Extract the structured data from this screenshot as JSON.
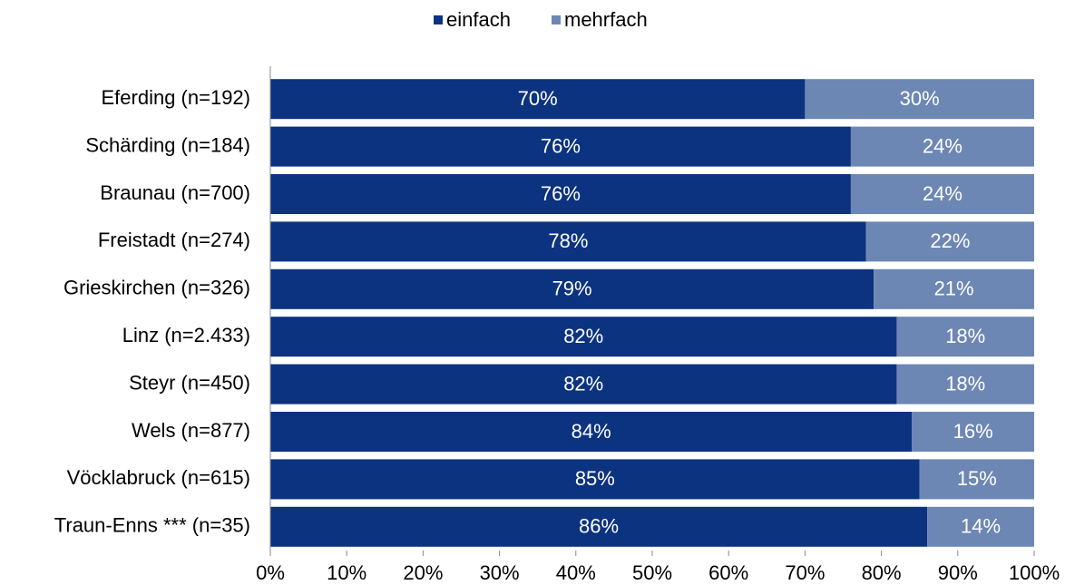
{
  "chart_data": {
    "type": "stacked_barh",
    "categories": [
      "Eferding (n=192)",
      "Schärding (n=184)",
      "Braunau (n=700)",
      "Freistadt (n=274)",
      "Grieskirchen (n=326)",
      "Linz (n=2.433)",
      "Steyr (n=450)",
      "Wels (n=877)",
      "Vöcklabruck (n=615)",
      "Traun-Enns *** (n=35)"
    ],
    "series": [
      {
        "name": "einfach",
        "color": "#0c3380",
        "values": [
          70,
          76,
          76,
          78,
          79,
          82,
          82,
          84,
          85,
          86
        ],
        "value_labels": [
          "70%",
          "76%",
          "76%",
          "78%",
          "79%",
          "82%",
          "82%",
          "84%",
          "85%",
          "86%"
        ]
      },
      {
        "name": "mehrfach",
        "color": "#6d87b4",
        "values": [
          30,
          24,
          24,
          22,
          21,
          18,
          18,
          16,
          15,
          14
        ],
        "value_labels": [
          "30%",
          "24%",
          "24%",
          "22%",
          "21%",
          "18%",
          "18%",
          "16%",
          "15%",
          "14%"
        ]
      }
    ],
    "xlim": [
      0,
      100
    ],
    "xticks": [
      {
        "value": 0,
        "label": "0%"
      },
      {
        "value": 10,
        "label": "10%"
      },
      {
        "value": 20,
        "label": "20%"
      },
      {
        "value": 30,
        "label": "30%"
      },
      {
        "value": 40,
        "label": "40%"
      },
      {
        "value": 50,
        "label": "50%"
      },
      {
        "value": 60,
        "label": "60%"
      },
      {
        "value": 70,
        "label": "70%"
      },
      {
        "value": 80,
        "label": "80%"
      },
      {
        "value": 90,
        "label": "90%"
      },
      {
        "value": 100,
        "label": "100%"
      }
    ],
    "legend": "top"
  }
}
